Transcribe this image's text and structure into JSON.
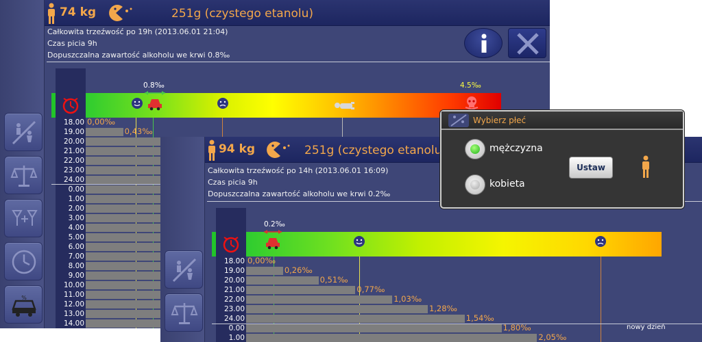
{
  "colors": {
    "accent_orange": "#f3a74b",
    "topbar": "#1d2660",
    "panel": "#3e4677",
    "bar_gray": "#7e7e7e",
    "marker_yellow": "#e8e050",
    "marker_green": "#49c64a",
    "marker_orange": "#d0833e"
  },
  "window1": {
    "weight": "74 kg",
    "ethanol": "251g (czystego etanolu)",
    "info": [
      "Całkowita trzeźwość po 19h (2013.06.01 21:04)",
      "Czas picia 9h",
      "Dopuszczalna zawartość alkoholu we krwi 0.8‰"
    ],
    "info_button_icon": "info-icon",
    "close_button_icon": "close-x-icon",
    "marker_limit": "0.8‰",
    "marker_max": "4.5‰",
    "sidebar": [
      {
        "icon": "gender-icon"
      },
      {
        "icon": "scale-icon"
      },
      {
        "icon": "drinks-icon"
      },
      {
        "icon": "clock-icon"
      },
      {
        "icon": "car-icon"
      }
    ],
    "rows": [
      {
        "time": "18.00",
        "label": "0,00‰",
        "value": 0.0
      },
      {
        "time": "19.00",
        "label": "0,43‰",
        "value": 0.43
      },
      {
        "time": "20.00",
        "label": "",
        "value": 0.86
      },
      {
        "time": "21.00",
        "label": "",
        "value": 1.29
      },
      {
        "time": "22.00",
        "label": "",
        "value": 1.72
      },
      {
        "time": "23.00",
        "label": "",
        "value": 2.15
      },
      {
        "time": "24.00",
        "label": "",
        "value": 2.58
      },
      {
        "time": "0.00",
        "label": "",
        "value": 3.01
      },
      {
        "time": "1.00",
        "label": "",
        "value": 3.44
      },
      {
        "time": "2.00",
        "label": "",
        "value": 3.87
      },
      {
        "time": "3.00",
        "label": "",
        "value": 4.3
      },
      {
        "time": "4.00",
        "label": "",
        "value": 4.3
      },
      {
        "time": "5.00",
        "label": "",
        "value": 4.3
      },
      {
        "time": "6.00",
        "label": "",
        "value": 4.3
      },
      {
        "time": "7.00",
        "label": "",
        "value": 4.3
      },
      {
        "time": "8.00",
        "label": "",
        "value": 4.3
      },
      {
        "time": "9.00",
        "label": "",
        "value": 4.3
      },
      {
        "time": "10.00",
        "label": "",
        "value": 4.3
      },
      {
        "time": "11.00",
        "label": "",
        "value": 4.3
      },
      {
        "time": "12.00",
        "label": "",
        "value": 4.3
      },
      {
        "time": "13.00",
        "label": "",
        "value": 4.3
      },
      {
        "time": "14.00",
        "label": "",
        "value": 4.3
      }
    ]
  },
  "window2": {
    "weight": "94 kg",
    "ethanol": "251g (czystego etanolu)",
    "info": [
      "Całkowita trzeźwość po 14h (2013.06.01 16:09)",
      "Czas picia 9h",
      "Dopuszczalna zawartość alkoholu we krwi 0.2‰"
    ],
    "marker_limit": "0.2‰",
    "new_day": "nowy dzień",
    "sidebar": [
      {
        "icon": "gender-icon"
      },
      {
        "icon": "scale-icon"
      }
    ],
    "rows": [
      {
        "time": "18.00",
        "label": "0,00‰",
        "value": 0.0
      },
      {
        "time": "19.00",
        "label": "0,26‰",
        "value": 0.26
      },
      {
        "time": "20.00",
        "label": "0,51‰",
        "value": 0.51
      },
      {
        "time": "21.00",
        "label": "0,77‰",
        "value": 0.77
      },
      {
        "time": "22.00",
        "label": "1,03‰",
        "value": 1.03
      },
      {
        "time": "23.00",
        "label": "1,28‰",
        "value": 1.28
      },
      {
        "time": "24.00",
        "label": "1,54‰",
        "value": 1.54
      },
      {
        "time": "0.00",
        "label": "1,80‰",
        "value": 1.8
      },
      {
        "time": "1.00",
        "label": "2,05‰",
        "value": 2.05
      }
    ]
  },
  "dialog": {
    "title": "Wybierz płeć",
    "options": [
      {
        "label": "mężczyzna",
        "selected": true
      },
      {
        "label": "kobieta",
        "selected": false
      }
    ],
    "button": "Ustaw"
  }
}
